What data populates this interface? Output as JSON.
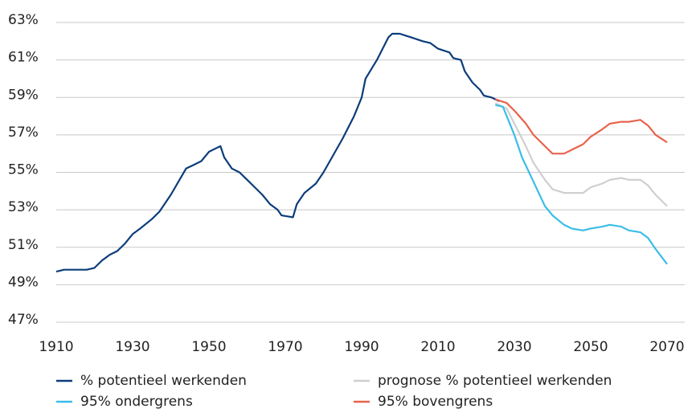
{
  "chart_data": {
    "type": "line",
    "series": [
      {
        "name": "% potentieel werkenden",
        "color": "#0b3d7a",
        "x": [
          1910,
          1912,
          1915,
          1918,
          1920,
          1922,
          1924,
          1926,
          1928,
          1930,
          1932,
          1935,
          1937,
          1940,
          1942,
          1944,
          1946,
          1948,
          1950,
          1952,
          1953,
          1954,
          1956,
          1958,
          1960,
          1962,
          1964,
          1966,
          1968,
          1969,
          1972,
          1973,
          1975,
          1978,
          1980,
          1985,
          1988,
          1990,
          1991,
          1994,
          1997,
          1998,
          2000,
          2003,
          2006,
          2008,
          2010,
          2013,
          2014,
          2016,
          2017,
          2019,
          2021,
          2022,
          2024,
          2026
        ],
        "values": [
          49.7,
          49.8,
          49.8,
          49.8,
          49.9,
          50.3,
          50.6,
          50.8,
          51.2,
          51.7,
          52.0,
          52.5,
          52.9,
          53.8,
          54.5,
          55.2,
          55.4,
          55.6,
          56.1,
          56.3,
          56.4,
          55.8,
          55.2,
          55.0,
          54.6,
          54.2,
          53.8,
          53.3,
          53.0,
          52.7,
          52.6,
          53.3,
          53.9,
          54.4,
          55.0,
          56.8,
          58.0,
          59.0,
          60.0,
          61.0,
          62.2,
          62.4,
          62.4,
          62.2,
          62.0,
          61.9,
          61.6,
          61.4,
          61.1,
          61.0,
          60.4,
          59.8,
          59.4,
          59.1,
          59.0,
          58.8
        ]
      },
      {
        "name": "prognose % potentieel werkenden",
        "color": "#cfcfcf",
        "x": [
          2025,
          2028,
          2030,
          2033,
          2035,
          2038,
          2040,
          2043,
          2045,
          2048,
          2050,
          2053,
          2055,
          2058,
          2060,
          2063,
          2065,
          2067,
          2070
        ],
        "values": [
          58.7,
          58.4,
          57.6,
          56.4,
          55.5,
          54.6,
          54.1,
          53.9,
          53.9,
          53.9,
          54.2,
          54.4,
          54.6,
          54.7,
          54.6,
          54.6,
          54.3,
          53.8,
          53.2
        ]
      },
      {
        "name": "95% ondergrens",
        "color": "#3bbde8",
        "x": [
          2025,
          2027,
          2030,
          2032,
          2035,
          2038,
          2040,
          2043,
          2045,
          2048,
          2050,
          2053,
          2055,
          2058,
          2060,
          2063,
          2065,
          2067,
          2070
        ],
        "values": [
          58.6,
          58.5,
          57.0,
          55.8,
          54.5,
          53.2,
          52.7,
          52.2,
          52.0,
          51.9,
          52.0,
          52.1,
          52.2,
          52.1,
          51.9,
          51.8,
          51.5,
          50.9,
          50.1
        ]
      },
      {
        "name": "95% bovengrens",
        "color": "#e8634a",
        "x": [
          2025,
          2028,
          2030,
          2033,
          2035,
          2038,
          2040,
          2043,
          2045,
          2048,
          2050,
          2053,
          2055,
          2058,
          2060,
          2063,
          2065,
          2067,
          2070
        ],
        "values": [
          58.9,
          58.7,
          58.3,
          57.6,
          57.0,
          56.4,
          56.0,
          56.0,
          56.2,
          56.5,
          56.9,
          57.3,
          57.6,
          57.7,
          57.7,
          57.8,
          57.5,
          57.0,
          56.6
        ]
      }
    ],
    "xlim": [
      1910,
      2070
    ],
    "xticks": [
      1910,
      1930,
      1950,
      1970,
      1990,
      2010,
      2030,
      2050,
      2070
    ],
    "ylim": [
      47,
      63
    ],
    "yticks": [
      {
        "value": 47,
        "label": "47%"
      },
      {
        "value": 49,
        "label": "49%"
      },
      {
        "value": 51,
        "label": "51%"
      },
      {
        "value": 53,
        "label": "53%"
      },
      {
        "value": 55,
        "label": "55%"
      },
      {
        "value": 57,
        "label": "57%"
      },
      {
        "value": 59,
        "label": "59%"
      },
      {
        "value": 61,
        "label": "61%"
      },
      {
        "value": 63,
        "label": "63%"
      }
    ],
    "grid": true,
    "legend": "bottom"
  }
}
